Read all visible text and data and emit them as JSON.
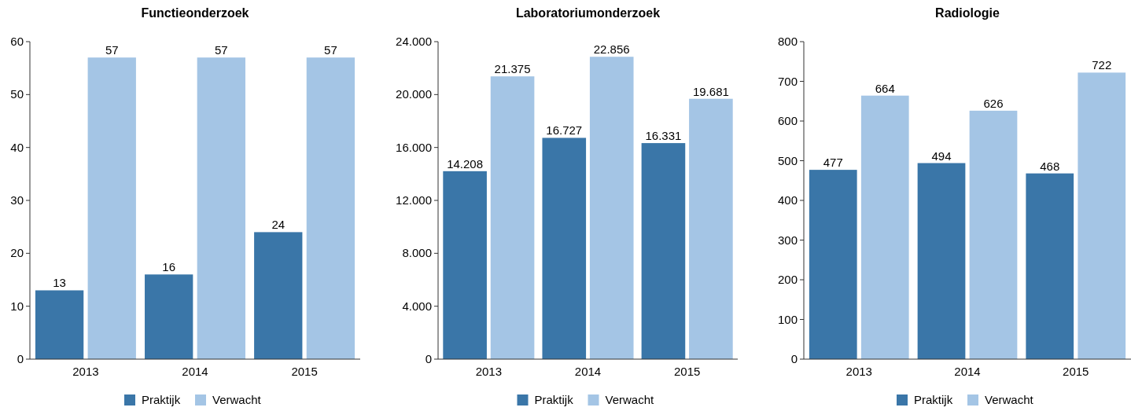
{
  "chart_data": [
    {
      "type": "bar",
      "title": "Functieonderzoek",
      "categories": [
        "2013",
        "2014",
        "2015"
      ],
      "series": [
        {
          "name": "Praktijk",
          "color": "#3a76a8",
          "values": [
            13,
            16,
            24
          ]
        },
        {
          "name": "Verwacht",
          "color": "#a4c5e5",
          "values": [
            57,
            57,
            57
          ]
        }
      ],
      "ylim": [
        0,
        60
      ],
      "yticks": [
        0,
        10,
        20,
        30,
        40,
        50,
        60
      ],
      "data_labels": true,
      "legend": "bottom",
      "grid": false
    },
    {
      "type": "bar",
      "title": "Laboratoriumonderzoek",
      "categories": [
        "2013",
        "2014",
        "2015"
      ],
      "series": [
        {
          "name": "Praktijk",
          "color": "#3a76a8",
          "values": [
            14208,
            16727,
            16331
          ],
          "value_labels": [
            "14.208",
            "16.727",
            "16.331"
          ]
        },
        {
          "name": "Verwacht",
          "color": "#a4c5e5",
          "values": [
            21375,
            22856,
            19681
          ],
          "value_labels": [
            "21.375",
            "22.856",
            "19.681"
          ]
        }
      ],
      "ylim": [
        0,
        24000
      ],
      "yticks": [
        0,
        {
          "value": 4000,
          "label": "4.000"
        },
        {
          "value": 8000,
          "label": "8.000"
        },
        {
          "value": 12000,
          "label": "12.000"
        },
        {
          "value": 16000,
          "label": "16.000"
        },
        {
          "value": 20000,
          "label": "20.000"
        },
        {
          "value": 24000,
          "label": "24.000"
        }
      ],
      "legend": "bottom",
      "grid": false
    },
    {
      "type": "bar",
      "title": "Radiologie",
      "categories": [
        "2013",
        "2014",
        "2015"
      ],
      "series": [
        {
          "name": "Praktijk",
          "color": "#3a76a8",
          "values": [
            477,
            494,
            468
          ]
        },
        {
          "name": "Verwacht",
          "color": "#a4c5e5",
          "values": [
            664,
            626,
            722
          ]
        }
      ],
      "ylim": [
        0,
        800
      ],
      "yticks": [
        0,
        100,
        200,
        300,
        400,
        500,
        600,
        700,
        800
      ],
      "data_labels": true,
      "legend": "bottom",
      "grid": false
    }
  ]
}
